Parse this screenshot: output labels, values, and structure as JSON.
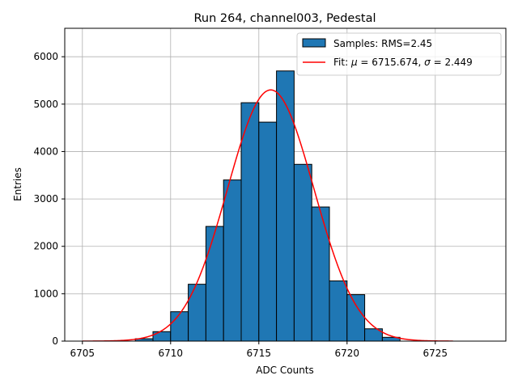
{
  "chart_data": {
    "type": "bar",
    "title": "Run 264, channel003, Pedestal",
    "xlabel": "ADC Counts",
    "ylabel": "Entries",
    "xlim": [
      6704,
      6729
    ],
    "ylim": [
      0,
      6600
    ],
    "xticks": [
      6705,
      6710,
      6715,
      6720,
      6725
    ],
    "yticks": [
      0,
      1000,
      2000,
      3000,
      4000,
      5000,
      6000
    ],
    "grid": true,
    "legend_position": "top-right",
    "legend": {
      "samples_label": "Samples: RMS=2.45",
      "fit_label_prefix": "Fit: ",
      "fit_mu_symbol": "μ",
      "fit_mu_text": " = 6715.674, ",
      "fit_sigma_symbol": "σ",
      "fit_sigma_text": " = 2.449"
    },
    "histogram": {
      "name": "Samples",
      "bin_edges": [
        6708,
        6709,
        6710,
        6711,
        6712,
        6713,
        6714,
        6715,
        6716,
        6717,
        6718,
        6719,
        6720,
        6721,
        6722,
        6723
      ],
      "counts": [
        50,
        200,
        620,
        1200,
        2420,
        3400,
        5030,
        4620,
        5700,
        3730,
        2830,
        1270,
        980,
        260,
        80
      ],
      "color": "#1f77b4",
      "edgecolor": "#000000"
    },
    "fit": {
      "name": "Fit",
      "mu": 6715.674,
      "sigma": 2.449,
      "peak": 5300,
      "x_range": [
        6705,
        6726
      ],
      "color": "#ff0000"
    }
  }
}
